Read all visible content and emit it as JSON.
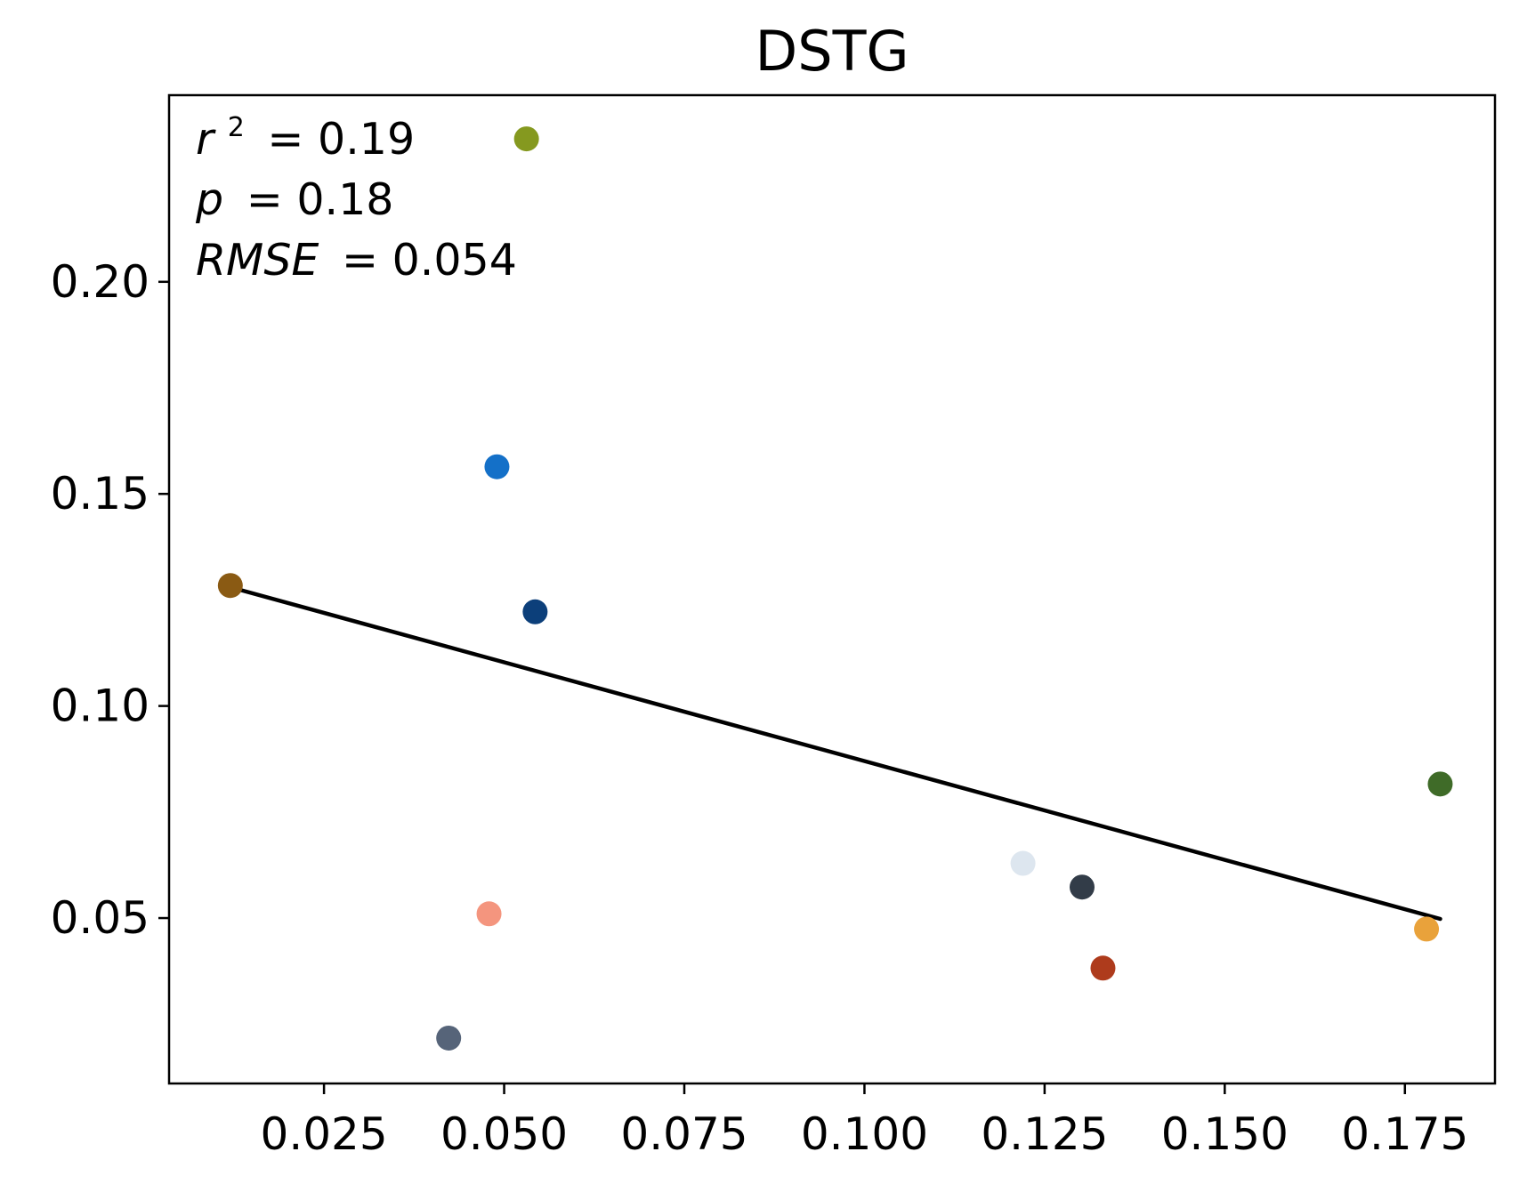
{
  "chart_data": {
    "type": "scatter",
    "title": "DSTG",
    "xlabel": "",
    "ylabel": "",
    "xlim": [
      0.0035,
      0.1875
    ],
    "ylim": [
      0.011,
      0.244
    ],
    "x_ticks": [
      "0.025",
      "0.050",
      "0.075",
      "0.100",
      "0.125",
      "0.150",
      "0.175"
    ],
    "x_tick_values": [
      0.025,
      0.05,
      0.075,
      0.1,
      0.125,
      0.15,
      0.175
    ],
    "y_ticks": [
      "0.05",
      "0.10",
      "0.15",
      "0.20"
    ],
    "y_tick_values": [
      0.05,
      0.1,
      0.15,
      0.2
    ],
    "grid": false,
    "points": [
      {
        "x": 0.012,
        "y": 0.1284,
        "color": "#8a5a13"
      },
      {
        "x": 0.0531,
        "y": 0.2337,
        "color": "#85991f"
      },
      {
        "x": 0.049,
        "y": 0.1564,
        "color": "#1470c8"
      },
      {
        "x": 0.0543,
        "y": 0.1222,
        "color": "#0c3f7a"
      },
      {
        "x": 0.0479,
        "y": 0.051,
        "color": "#f4957e"
      },
      {
        "x": 0.0423,
        "y": 0.0217,
        "color": "#566479"
      },
      {
        "x": 0.122,
        "y": 0.0629,
        "color": "#dde6ef"
      },
      {
        "x": 0.1302,
        "y": 0.0573,
        "color": "#323c48"
      },
      {
        "x": 0.1331,
        "y": 0.0382,
        "color": "#ae3b1c"
      },
      {
        "x": 0.178,
        "y": 0.0474,
        "color": "#e9a23b"
      },
      {
        "x": 0.1799,
        "y": 0.0816,
        "color": "#3f6b28"
      }
    ],
    "fit_line": {
      "x": [
        0.012,
        0.1799
      ],
      "y": [
        0.128,
        0.0498
      ],
      "color": "#000000"
    },
    "annotations": {
      "r2_symbol": "r",
      "r2_exponent": "2",
      "r2_value": "= 0.19",
      "p_symbol": "p",
      "p_value": "= 0.18",
      "rmse_symbol": "RMSE",
      "rmse_value": "= 0.054"
    }
  }
}
